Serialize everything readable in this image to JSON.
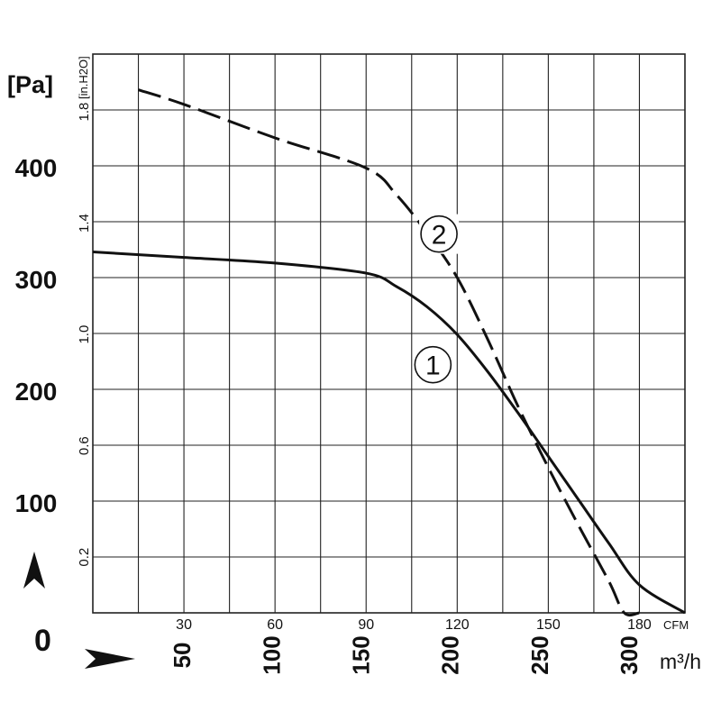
{
  "chart_data": {
    "type": "line",
    "title": "",
    "y_axis_primary": {
      "unit": "[Pa]",
      "ticks": [
        {
          "value": 100,
          "label": "100"
        },
        {
          "value": 200,
          "label": "200"
        },
        {
          "value": 300,
          "label": "300"
        },
        {
          "value": 400,
          "label": "400"
        }
      ],
      "zero_label": "0",
      "range": [
        0,
        500
      ]
    },
    "y_axis_secondary": {
      "unit": "[in.H2O]",
      "ticks": [
        {
          "value": 0.2,
          "label": "0.2"
        },
        {
          "value": 0.6,
          "label": "0.6"
        },
        {
          "value": 1.0,
          "label": "1.0"
        },
        {
          "value": 1.4,
          "label": "1.4"
        },
        {
          "value": 1.8,
          "label": "1.8"
        }
      ]
    },
    "x_axis_primary": {
      "unit": "CFM",
      "ticks": [
        {
          "value": 30,
          "label": "30"
        },
        {
          "value": 60,
          "label": "60"
        },
        {
          "value": 90,
          "label": "90"
        },
        {
          "value": 120,
          "label": "120"
        },
        {
          "value": 150,
          "label": "150"
        },
        {
          "value": 180,
          "label": "180"
        }
      ],
      "range": [
        0,
        195
      ]
    },
    "x_axis_secondary": {
      "unit": "m³/h",
      "ticks": [
        {
          "value": 50,
          "label": "50"
        },
        {
          "value": 100,
          "label": "100"
        },
        {
          "value": 150,
          "label": "150"
        },
        {
          "value": 200,
          "label": "200"
        },
        {
          "value": 250,
          "label": "250"
        },
        {
          "value": 300,
          "label": "300"
        }
      ]
    },
    "grid": true,
    "series": [
      {
        "label": "①",
        "style": "solid",
        "x": [
          0,
          30,
          60,
          90,
          100,
          110,
          120,
          130,
          140,
          150,
          160,
          170,
          180,
          195
        ],
        "y": [
          323,
          318,
          313,
          304,
          292,
          274,
          249,
          216,
          179,
          140,
          101,
          62,
          25,
          0
        ]
      },
      {
        "label": "②",
        "style": "dashed",
        "x": [
          15,
          30,
          60,
          90,
          100,
          110,
          120,
          130,
          140,
          150,
          160,
          170,
          175,
          180
        ],
        "y": [
          468,
          455,
          425,
          398,
          374,
          340,
          300,
          245,
          185,
          130,
          78,
          28,
          0,
          0
        ]
      }
    ],
    "curve_label_positions": [
      {
        "label": "①",
        "x": 112,
        "y": 222
      },
      {
        "label": "②",
        "x": 114,
        "y": 339
      }
    ],
    "colors": {
      "line": "#111111",
      "grid": "#222222",
      "background": "#ffffff"
    }
  },
  "icons": {
    "up_arrow": "up-arrowhead-icon",
    "right_arrow": "right-arrowhead-icon"
  }
}
